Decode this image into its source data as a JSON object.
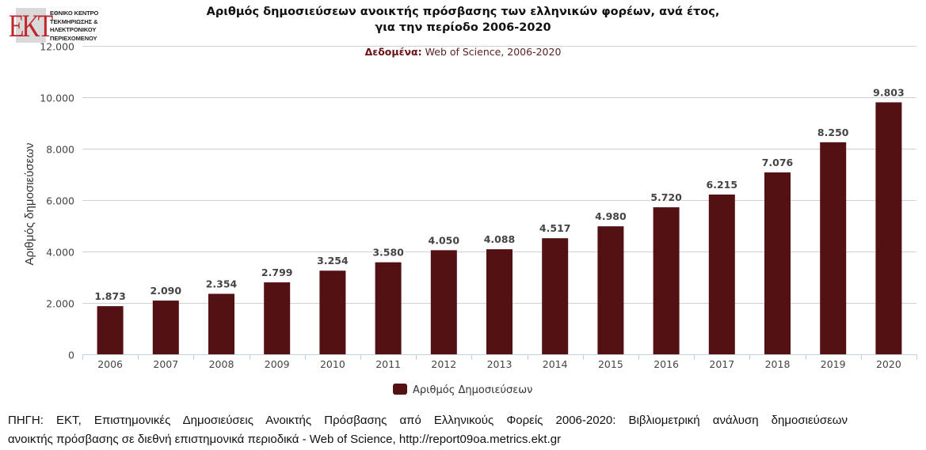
{
  "logo": {
    "mark": "EKT",
    "lines": [
      "ΕΘΝΙΚΟ ΚΕΝΤΡΟ",
      "ΤΕΚΜΗΡΙΩΣΗΣ &",
      "ΗΛΕΚΤΡΟΝΙΚΟΥ",
      "ΠΕΡΙΕΧΟΜΕΝΟΥ"
    ]
  },
  "colors": {
    "bar": "#541114",
    "logo_red": "#c0272d",
    "grid": "#d0d0d0",
    "axis": "#c0d0e0"
  },
  "chart_data": {
    "type": "bar",
    "title": "Αριθμός δημοσιεύσεων ανοικτής πρόσβασης των ελληνικών φορέων, ανά έτος,",
    "title_line2": "για την περίοδο 2006-2020",
    "subtitle_label": "Δεδομένα:",
    "subtitle_text": " Web of Science, 2006-2020",
    "xlabel": "",
    "ylabel": "Αριθμός δημοσιεύσεων",
    "ylim": [
      0,
      12000
    ],
    "yticks": [
      0,
      2000,
      4000,
      6000,
      8000,
      10000,
      12000
    ],
    "ytick_labels": [
      "0",
      "2.000",
      "4.000",
      "6.000",
      "8.000",
      "10.000",
      "12.000"
    ],
    "grid": true,
    "legend_position": "bottom-center",
    "categories": [
      "2006",
      "2007",
      "2008",
      "2009",
      "2010",
      "2011",
      "2012",
      "2013",
      "2014",
      "2015",
      "2016",
      "2017",
      "2018",
      "2019",
      "2020"
    ],
    "series": [
      {
        "name": "Αριθμός Δημοσιεύσεων",
        "values": [
          1873,
          2090,
          2354,
          2799,
          3254,
          3580,
          4050,
          4088,
          4517,
          4980,
          5720,
          6215,
          7076,
          8250,
          9803
        ],
        "labels": [
          "1.873",
          "2.090",
          "2.354",
          "2.799",
          "3.254",
          "3.580",
          "4.050",
          "4.088",
          "4.517",
          "4.980",
          "5.720",
          "6.215",
          "7.076",
          "8.250",
          "9.803"
        ]
      }
    ]
  },
  "caption": {
    "line1": "ΠΗΓΗ: ΕΚΤ, Επιστημονικές Δημοσιεύσεις Ανοικτής Πρόσβασης από Ελληνικούς Φορείς 2006-2020: Βιβλιομετρική ανάλυση δημοσιεύσεων",
    "line2": "ανοικτής πρόσβασης σε διεθνή επιστημονικά περιοδικά - Web of Science, http://report09oa.metrics.ekt.gr"
  }
}
